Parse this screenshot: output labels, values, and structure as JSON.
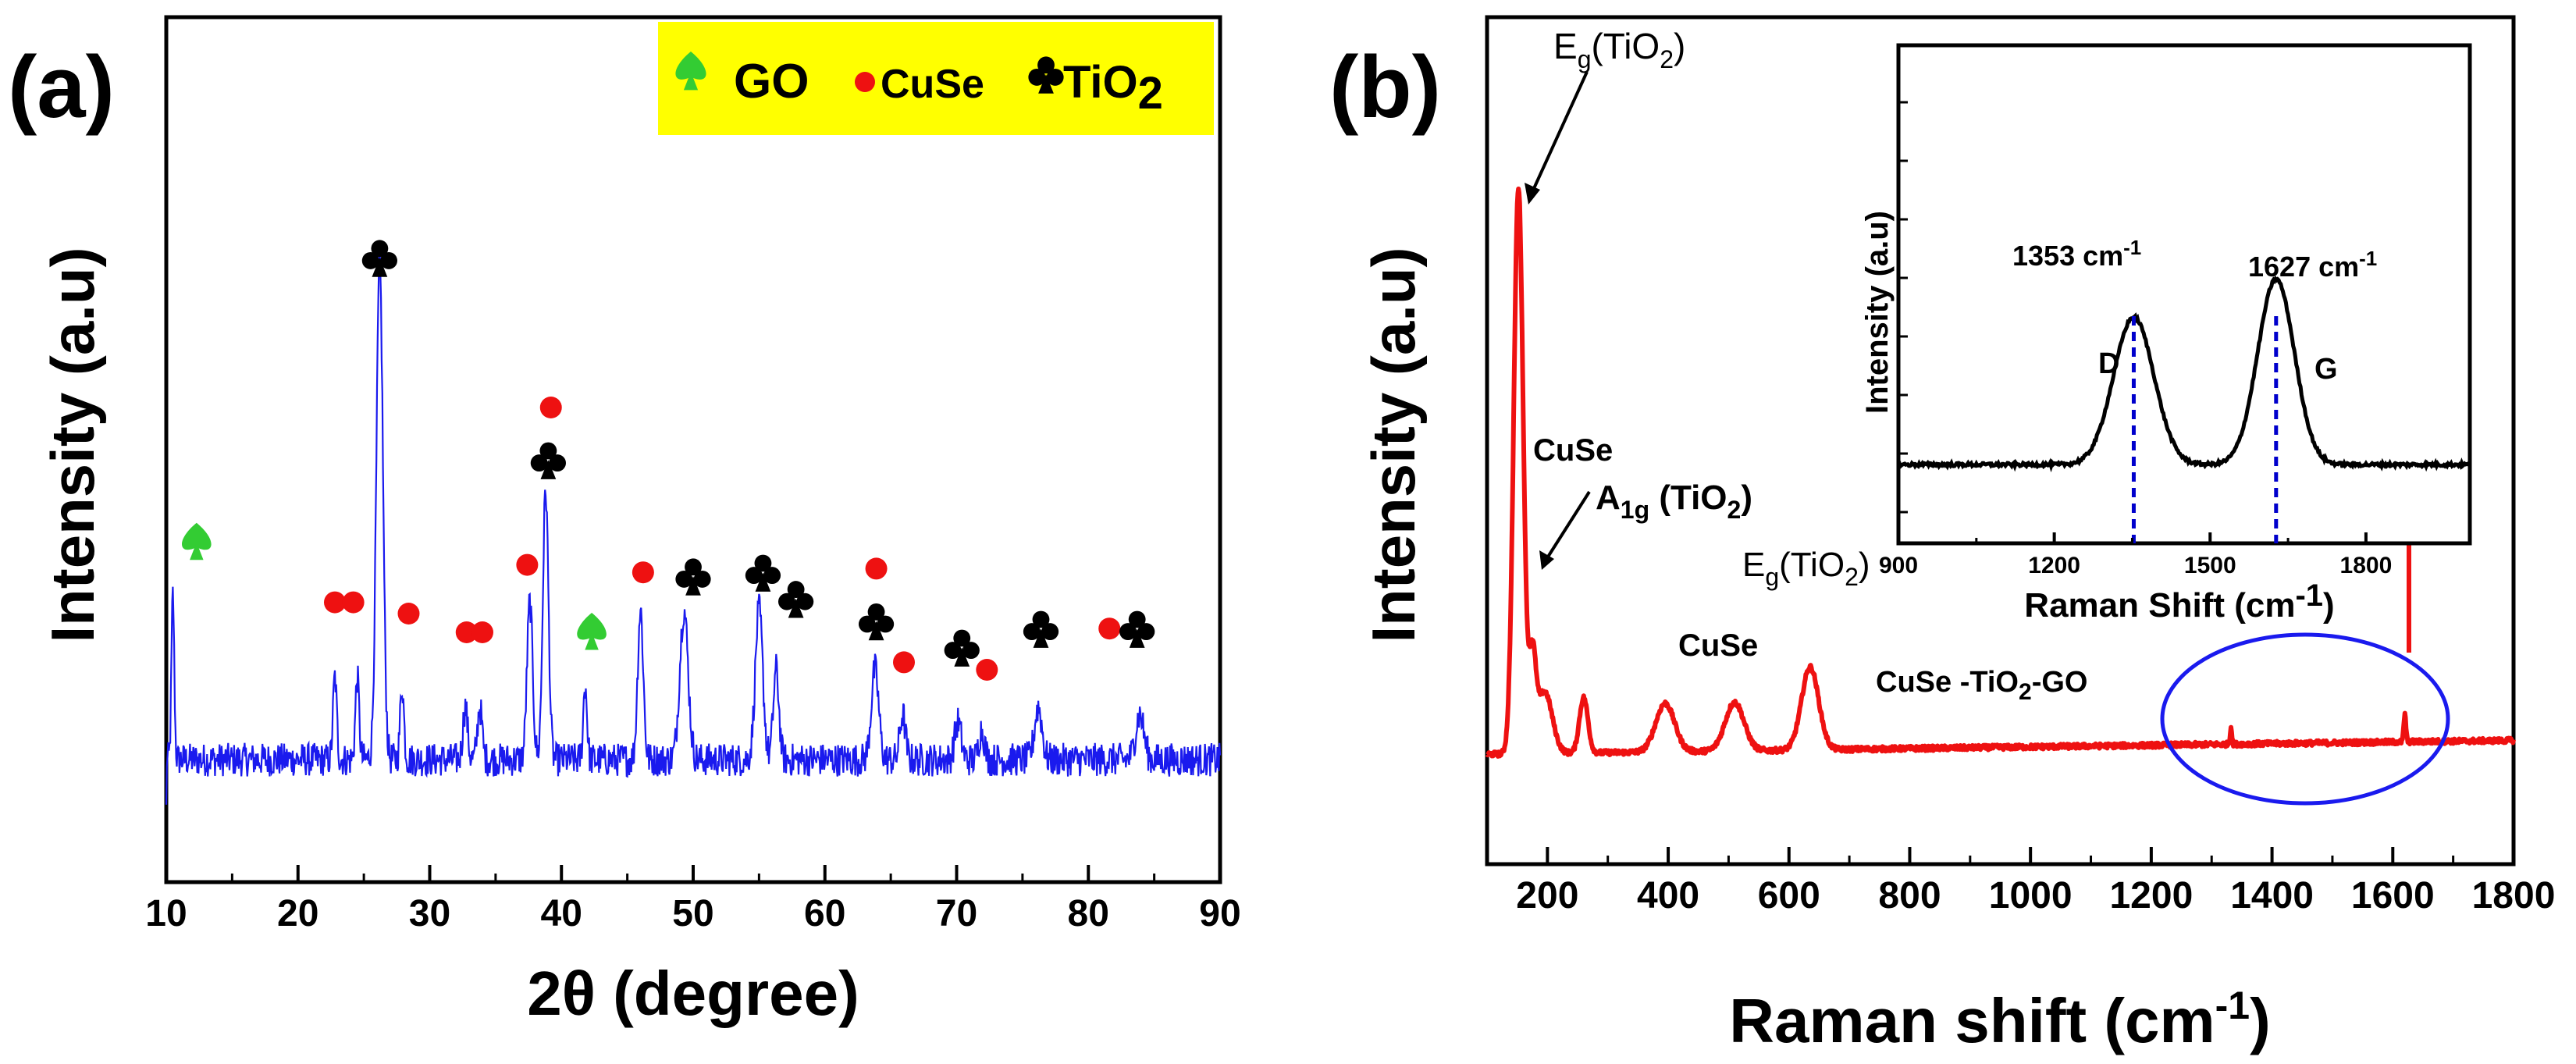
{
  "colors": {
    "xrd_line": "#1a1aee",
    "raman_line": "#ee1111",
    "inset_line": "#000000",
    "legend_bg": "#ffff00",
    "go_marker": "#33cc33",
    "cuse_marker": "#ee1111",
    "tio2_marker": "#000000",
    "ellipse": "#1a1aee",
    "dashed": "#0000cc",
    "arrow_red": "#ee1111"
  },
  "chart_data": [
    {
      "id": "xrd",
      "type": "line",
      "panel_label": "(a)",
      "xlabel": "2θ (degree)",
      "ylabel": "Intensity (a.u)",
      "xlim": [
        10,
        90
      ],
      "ylim": [
        0,
        100
      ],
      "xticks": [
        "10",
        "20",
        "30",
        "40",
        "50",
        "60",
        "70",
        "80",
        "90"
      ],
      "xtick_values": [
        10,
        20,
        30,
        40,
        50,
        60,
        70,
        80,
        90
      ],
      "legend": {
        "go": "GO",
        "cuse": "CuSe",
        "tio2_main": "TiO",
        "tio2_sub": "2",
        "placement": "top-right"
      },
      "baseline": 8,
      "peaks": [
        {
          "x": 10.5,
          "h": 22,
          "w": 0.15
        },
        {
          "x": 22.8,
          "h": 11,
          "w": 0.2
        },
        {
          "x": 24.5,
          "h": 11,
          "w": 0.2
        },
        {
          "x": 26.2,
          "h": 66,
          "w": 0.35
        },
        {
          "x": 27.9,
          "h": 10,
          "w": 0.2
        },
        {
          "x": 32.7,
          "h": 7,
          "w": 0.25
        },
        {
          "x": 33.8,
          "h": 7,
          "w": 0.25
        },
        {
          "x": 37.6,
          "h": 21,
          "w": 0.3
        },
        {
          "x": 38.8,
          "h": 36,
          "w": 0.3
        },
        {
          "x": 41.8,
          "h": 10,
          "w": 0.2
        },
        {
          "x": 46.0,
          "h": 20,
          "w": 0.3
        },
        {
          "x": 49.3,
          "h": 20,
          "w": 0.45
        },
        {
          "x": 55.0,
          "h": 20,
          "w": 0.4
        },
        {
          "x": 56.3,
          "h": 12,
          "w": 0.3
        },
        {
          "x": 63.8,
          "h": 12,
          "w": 0.4
        },
        {
          "x": 65.9,
          "h": 6,
          "w": 0.3
        },
        {
          "x": 70.1,
          "h": 5,
          "w": 0.35
        },
        {
          "x": 71.9,
          "h": 4,
          "w": 0.3
        },
        {
          "x": 76.2,
          "h": 7,
          "w": 0.4
        },
        {
          "x": 83.9,
          "h": 6,
          "w": 0.45
        }
      ],
      "markers": [
        {
          "type": "go",
          "x": 12.3,
          "y": 37
        },
        {
          "type": "cuse",
          "x": 22.8,
          "y": 29
        },
        {
          "type": "cuse",
          "x": 24.2,
          "y": 29
        },
        {
          "type": "tio2",
          "x": 26.2,
          "y": 75
        },
        {
          "type": "cuse",
          "x": 28.4,
          "y": 27.5
        },
        {
          "type": "cuse",
          "x": 32.8,
          "y": 25
        },
        {
          "type": "cuse",
          "x": 34.0,
          "y": 25
        },
        {
          "type": "cuse",
          "x": 37.4,
          "y": 34
        },
        {
          "type": "cuse",
          "x": 39.2,
          "y": 55
        },
        {
          "type": "tio2",
          "x": 39.0,
          "y": 48
        },
        {
          "type": "go",
          "x": 42.3,
          "y": 25
        },
        {
          "type": "cuse",
          "x": 46.2,
          "y": 33
        },
        {
          "type": "tio2",
          "x": 50.0,
          "y": 32.5
        },
        {
          "type": "tio2",
          "x": 55.3,
          "y": 33
        },
        {
          "type": "tio2",
          "x": 57.8,
          "y": 29.5
        },
        {
          "type": "cuse",
          "x": 63.9,
          "y": 33.5
        },
        {
          "type": "tio2",
          "x": 63.9,
          "y": 26.5
        },
        {
          "type": "cuse",
          "x": 66.0,
          "y": 21
        },
        {
          "type": "tio2",
          "x": 70.4,
          "y": 23
        },
        {
          "type": "cuse",
          "x": 72.3,
          "y": 20
        },
        {
          "type": "tio2",
          "x": 76.4,
          "y": 25.5
        },
        {
          "type": "cuse",
          "x": 81.6,
          "y": 25.5
        },
        {
          "type": "tio2",
          "x": 83.7,
          "y": 25.5
        }
      ]
    },
    {
      "id": "raman",
      "type": "line",
      "panel_label": "(b)",
      "xlabel_main": "Raman shift (cm",
      "xlabel_sup": "-1",
      "xlabel_end": ")",
      "ylabel": "Intensity (a.u)",
      "xlim": [
        100,
        1800
      ],
      "ylim": [
        0,
        100
      ],
      "xticks": [
        "200",
        "400",
        "600",
        "800",
        "1000",
        "1200",
        "1400",
        "1600",
        "1800"
      ],
      "xtick_values": [
        200,
        400,
        600,
        800,
        1000,
        1200,
        1400,
        1600,
        1800
      ],
      "baseline_start": 1,
      "baseline_end": 3,
      "peaks": [
        {
          "x": 152,
          "h": 82,
          "w": 11
        },
        {
          "x": 175,
          "h": 13,
          "w": 8
        },
        {
          "x": 195,
          "h": 9,
          "w": 18
        },
        {
          "x": 260,
          "h": 8,
          "w": 10
        },
        {
          "x": 395,
          "h": 7,
          "w": 22
        },
        {
          "x": 510,
          "h": 7,
          "w": 22
        },
        {
          "x": 635,
          "h": 12,
          "w": 20
        },
        {
          "x": 1332,
          "h": 2.5,
          "w": 2
        },
        {
          "x": 1620,
          "h": 4,
          "w": 2.5
        }
      ],
      "annotations": {
        "eg1_main": "E",
        "eg1_sub": "g",
        "eg1_end": "(TiO",
        "eg1_sub2": "2",
        "eg1_close": ")",
        "cuse1": "CuSe",
        "a1g_main": "A",
        "a1g_sub": "1g",
        "a1g_end": " (TiO",
        "a1g_sub2": "2",
        "a1g_close": ")",
        "eg2_main": "E",
        "eg2_sub": "g",
        "eg2_end": "(TiO",
        "eg2_sub2": "2",
        "eg2_close": ")",
        "cuse2": "CuSe",
        "sample_main": "CuSe -TiO",
        "sample_sub": "2",
        "sample_end": "-GO"
      },
      "inset": {
        "type": "line",
        "xlabel_main": "Raman Shift (cm",
        "xlabel_sup": "-1",
        "xlabel_end": ")",
        "ylabel": "Intensity (a.u)",
        "xlim": [
          900,
          2000
        ],
        "ylim": [
          0,
          100
        ],
        "xticks": [
          "900",
          "1200",
          "1500",
          "1800"
        ],
        "xtick_values": [
          900,
          1200,
          1500,
          1800
        ],
        "baseline": 12,
        "peaks": [
          {
            "x": 1353,
            "h": 35,
            "w": 55
          },
          {
            "x": 1627,
            "h": 44,
            "w": 50
          }
        ],
        "d_label": "D",
        "g_label": "G",
        "d_pos_main": "1353 cm",
        "d_pos_sup": "-1",
        "g_pos_main": "1627 cm",
        "g_pos_sup": "-1",
        "d_value": 1353,
        "g_value": 1627
      }
    }
  ]
}
